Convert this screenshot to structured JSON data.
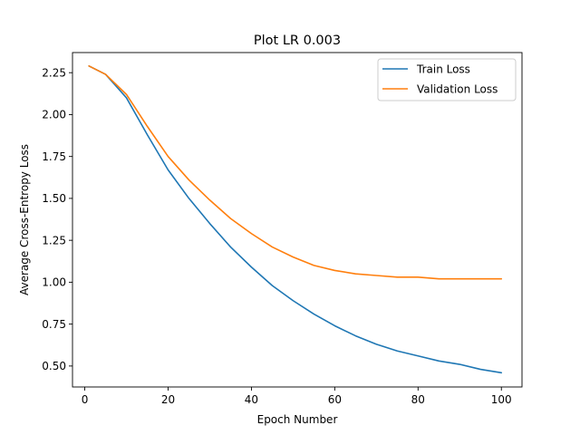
{
  "chart_data": {
    "type": "line",
    "title": "Plot LR 0.003",
    "xlabel": "Epoch Number",
    "ylabel": "Average Cross-Entropy Loss",
    "xlim": [
      -2.95,
      104.95
    ],
    "ylim": [
      0.375,
      2.37
    ],
    "xticks": [
      0,
      20,
      40,
      60,
      80,
      100
    ],
    "xtick_labels": [
      "0",
      "20",
      "40",
      "60",
      "80",
      "100"
    ],
    "yticks": [
      0.5,
      0.75,
      1.0,
      1.25,
      1.5,
      1.75,
      2.0,
      2.25
    ],
    "ytick_labels": [
      "0.50",
      "0.75",
      "1.00",
      "1.25",
      "1.50",
      "1.75",
      "2.00",
      "2.25"
    ],
    "grid": false,
    "legend_position": "top-right",
    "x": [
      1,
      5,
      10,
      15,
      20,
      25,
      30,
      35,
      40,
      45,
      50,
      55,
      60,
      65,
      70,
      75,
      80,
      85,
      90,
      95,
      100
    ],
    "series": [
      {
        "name": "Train Loss",
        "color": "#1f77b4",
        "values": [
          2.29,
          2.24,
          2.1,
          1.88,
          1.67,
          1.5,
          1.35,
          1.21,
          1.09,
          0.98,
          0.89,
          0.81,
          0.74,
          0.68,
          0.63,
          0.59,
          0.56,
          0.53,
          0.51,
          0.48,
          0.46
        ]
      },
      {
        "name": "Validation Loss",
        "color": "#ff7f0e",
        "values": [
          2.29,
          2.24,
          2.12,
          1.93,
          1.75,
          1.61,
          1.49,
          1.38,
          1.29,
          1.21,
          1.15,
          1.1,
          1.07,
          1.05,
          1.04,
          1.03,
          1.03,
          1.02,
          1.02,
          1.02,
          1.02
        ]
      }
    ]
  }
}
